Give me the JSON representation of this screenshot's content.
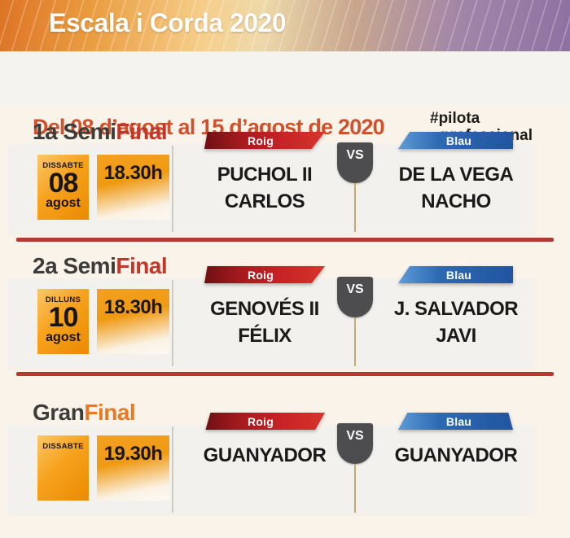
{
  "header": {
    "title": "Escala i Corda 2020"
  },
  "subheader": {
    "date_range": "Del 08 d’agost al 15 d’agost de 2020",
    "hashtag_line1": "#pilota",
    "hashtag_line2": "professional"
  },
  "colors": {
    "red_team": "#c62025",
    "blue_team": "#2d6ab2",
    "accent_orange": "#f09a13",
    "divider_red": "#b23a30",
    "date_range_text": "#d0512b",
    "final_suffix_orange": "#e87a24",
    "semifinal_suffix_red": "#c2372a"
  },
  "matches": [
    {
      "heading_prefix": "1a Semi",
      "heading_suffix": "Final",
      "day_name": "DISSABTE",
      "day_number": "08",
      "month": "agost",
      "time": "18.30h",
      "red_label": "Roig",
      "red_player1": "PUCHOL II",
      "red_player2": "CARLOS",
      "vs": "VS",
      "blue_label": "Blau",
      "blue_player1": "DE LA VEGA",
      "blue_player2": "NACHO"
    },
    {
      "heading_prefix": "2a Semi",
      "heading_suffix": "Final",
      "day_name": "DILLUNS",
      "day_number": "10",
      "month": "agost",
      "time": "18.30h",
      "red_label": "Roig",
      "red_player1": "GENOVÉS II",
      "red_player2": "FÉLIX",
      "vs": "VS",
      "blue_label": "Blau",
      "blue_player1": "J. SALVADOR",
      "blue_player2": "JAVI"
    },
    {
      "heading_prefix": "Gran",
      "heading_suffix": "Final",
      "day_name": "DISSABTE",
      "day_number": "",
      "month": "",
      "time": "19.30h",
      "red_label": "Roig",
      "red_player1": "GUANYADOR",
      "red_player2": "",
      "vs": "VS",
      "blue_label": "Blau",
      "blue_player1": "GUANYADOR",
      "blue_player2": ""
    }
  ]
}
